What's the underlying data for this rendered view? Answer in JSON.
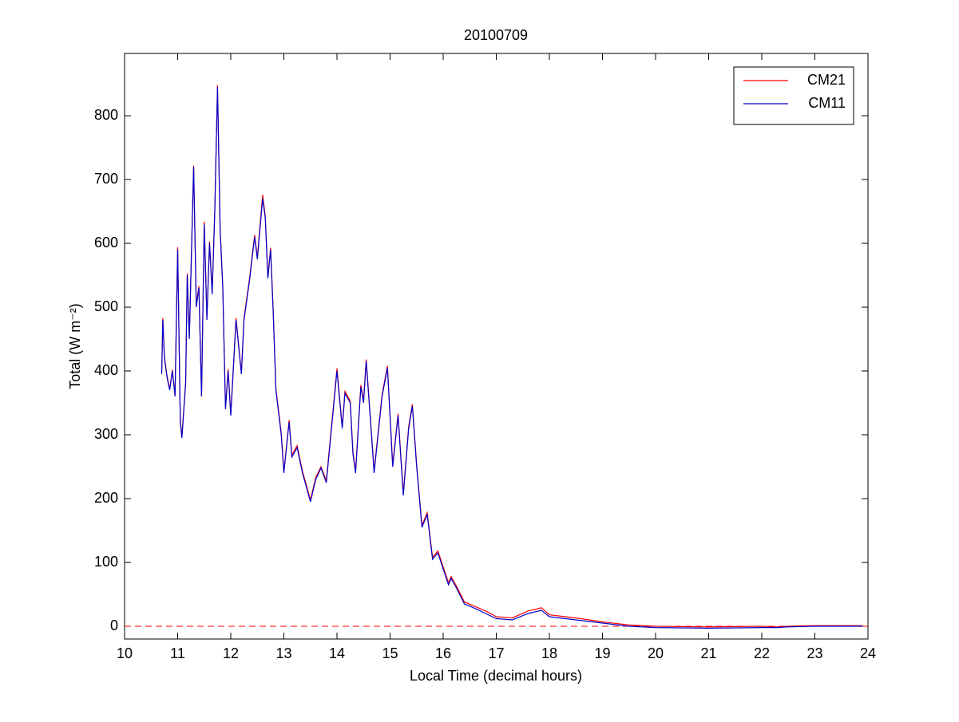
{
  "chart_data": {
    "type": "line",
    "title": "20100709",
    "xlabel": "Local Time (decimal hours)",
    "ylabel": "Total (W m⁻²)",
    "x": [
      10.7,
      10.72,
      10.75,
      10.8,
      10.85,
      10.9,
      10.95,
      11.0,
      11.05,
      11.08,
      11.15,
      11.18,
      11.22,
      11.3,
      11.35,
      11.4,
      11.45,
      11.5,
      11.55,
      11.6,
      11.65,
      11.7,
      11.75,
      11.8,
      11.85,
      11.9,
      11.95,
      12.0,
      12.1,
      12.2,
      12.25,
      12.35,
      12.45,
      12.5,
      12.6,
      12.65,
      12.7,
      12.75,
      12.8,
      12.85,
      12.95,
      13.0,
      13.1,
      13.15,
      13.25,
      13.35,
      13.5,
      13.6,
      13.7,
      13.8,
      14.0,
      14.1,
      14.15,
      14.25,
      14.3,
      14.35,
      14.45,
      14.5,
      14.55,
      14.65,
      14.7,
      14.85,
      14.95,
      15.05,
      15.15,
      15.25,
      15.35,
      15.42,
      15.5,
      15.6,
      15.7,
      15.8,
      15.9,
      16.0,
      16.1,
      16.15,
      16.25,
      16.4,
      16.6,
      16.8,
      17.0,
      17.3,
      17.6,
      17.85,
      18.0,
      18.5,
      19.0,
      19.5,
      20.0,
      21.0,
      22.0,
      22.3,
      22.5,
      23.0,
      23.9
    ],
    "series": [
      {
        "name": "CM21",
        "color": "#ff0000",
        "values": [
          398,
          483,
          423,
          392,
          372,
          402,
          362,
          594,
          323,
          297,
          383,
          553,
          453,
          722,
          503,
          533,
          362,
          634,
          483,
          603,
          523,
          653,
          848,
          623,
          533,
          342,
          403,
          332,
          483,
          397,
          483,
          543,
          613,
          578,
          676,
          643,
          548,
          593,
          493,
          373,
          303,
          242,
          323,
          268,
          283,
          243,
          198,
          233,
          250,
          228,
          404,
          313,
          368,
          353,
          273,
          243,
          378,
          353,
          418,
          303,
          243,
          363,
          408,
          253,
          333,
          208,
          313,
          348,
          253,
          158,
          178,
          108,
          118,
          93,
          68,
          78,
          63,
          38,
          31,
          24,
          15,
          13,
          24,
          29,
          18,
          13,
          7,
          2,
          0,
          -1,
          0,
          -1,
          0,
          1,
          1
        ]
      },
      {
        "name": "CM11",
        "color": "#0000cc",
        "values": [
          395,
          480,
          420,
          390,
          370,
          400,
          360,
          590,
          320,
          295,
          380,
          550,
          450,
          720,
          500,
          530,
          360,
          630,
          480,
          600,
          520,
          650,
          845,
          620,
          530,
          340,
          400,
          330,
          480,
          395,
          480,
          540,
          610,
          575,
          670,
          640,
          545,
          590,
          490,
          370,
          300,
          240,
          320,
          265,
          280,
          240,
          195,
          230,
          248,
          225,
          400,
          310,
          365,
          350,
          270,
          240,
          375,
          350,
          415,
          300,
          240,
          360,
          405,
          250,
          330,
          205,
          310,
          345,
          250,
          155,
          175,
          105,
          115,
          90,
          65,
          75,
          60,
          35,
          28,
          20,
          12,
          10,
          20,
          25,
          15,
          10,
          5,
          0,
          -2,
          -3,
          -2,
          -2,
          -1,
          0,
          0
        ]
      }
    ],
    "xlim": [
      10,
      24
    ],
    "xticks": [
      10,
      11,
      12,
      13,
      14,
      15,
      16,
      17,
      18,
      19,
      20,
      21,
      22,
      23,
      24
    ],
    "ylim": [
      -20,
      897.5
    ],
    "yticks": [
      0,
      100,
      200,
      300,
      400,
      500,
      600,
      700,
      800
    ],
    "reference_line": {
      "value": 0,
      "color": "#ff0000",
      "style": "dashed"
    },
    "legend": "upper right",
    "grid": false
  }
}
